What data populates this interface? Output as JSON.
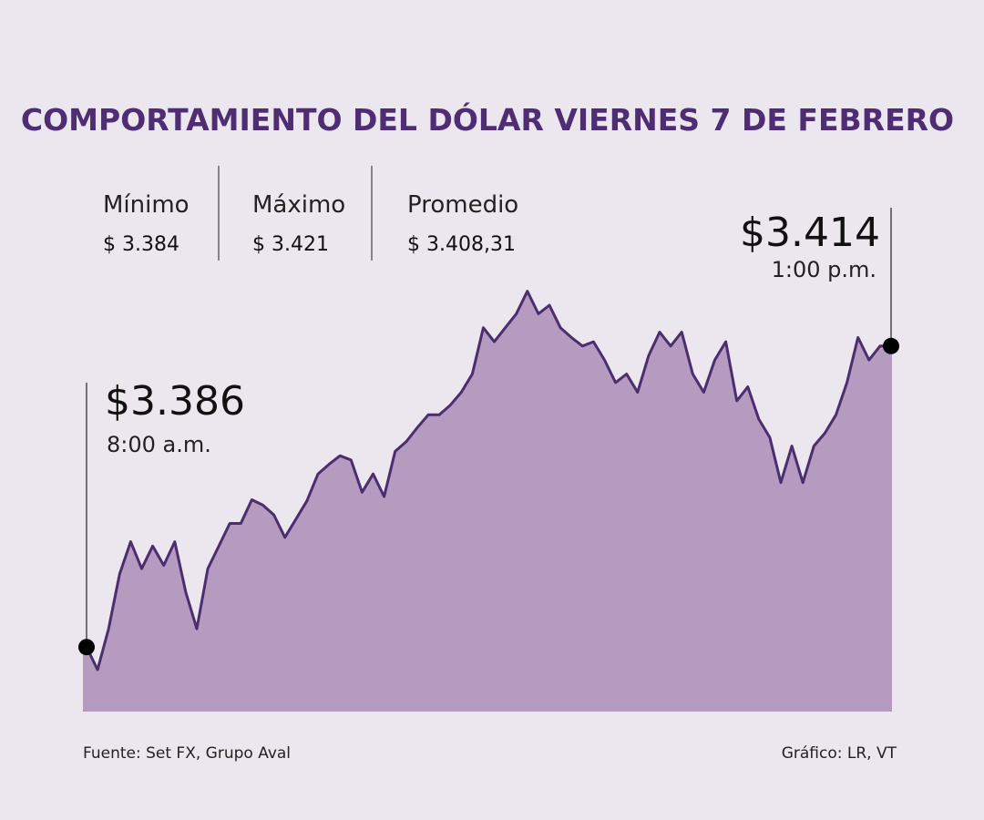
{
  "chart_data": {
    "type": "area",
    "title": "COMPORTAMIENTO DEL DÓLAR VIERNES 7 DE FEBRERO",
    "stats": {
      "labels": [
        "Mínimo",
        "Máximo",
        "Promedio"
      ],
      "values": [
        3384,
        3421,
        3408.31
      ],
      "value_labels": [
        "$ 3.384",
        "$ 3.421",
        "$ 3.408,31"
      ]
    },
    "values": [
      3386,
      3383.9,
      3387.7,
      3392.8,
      3395.8,
      3393.3,
      3395.4,
      3393.6,
      3395.8,
      3391.1,
      3387.7,
      3393.3,
      3395.4,
      3397.5,
      3397.5,
      3399.7,
      3399.2,
      3398.3,
      3396.2,
      3397.9,
      3399.6,
      3402.1,
      3403,
      3403.8,
      3403.4,
      3400.4,
      3402.1,
      3400,
      3404.2,
      3405.1,
      3406.4,
      3407.6,
      3407.6,
      3408.5,
      3409.7,
      3411.4,
      3415.7,
      3414.4,
      3415.7,
      3417,
      3419.1,
      3417,
      3417.8,
      3415.7,
      3414.8,
      3414,
      3414.4,
      3412.7,
      3410.6,
      3411.4,
      3409.7,
      3413.1,
      3415.3,
      3414,
      3415.3,
      3411.4,
      3409.7,
      3412.7,
      3414.4,
      3408.9,
      3410.2,
      3407.2,
      3405.5,
      3401.3,
      3404.7,
      3401.3,
      3404.7,
      3405.9,
      3407.6,
      3410.6,
      3414.8,
      3412.7,
      3414,
      3414
    ],
    "color": "#b59bc0",
    "line_color": "#4a2e6e",
    "ylim": [
      3380,
      3425
    ],
    "start": {
      "value_label": "$3.386",
      "time": "8:00 a.m."
    },
    "end": {
      "value_label": "$3.414",
      "time": "1:00 p.m."
    },
    "source": "Fuente: Set FX, Grupo Aval",
    "credit": "Gráfico: LR, VT"
  }
}
